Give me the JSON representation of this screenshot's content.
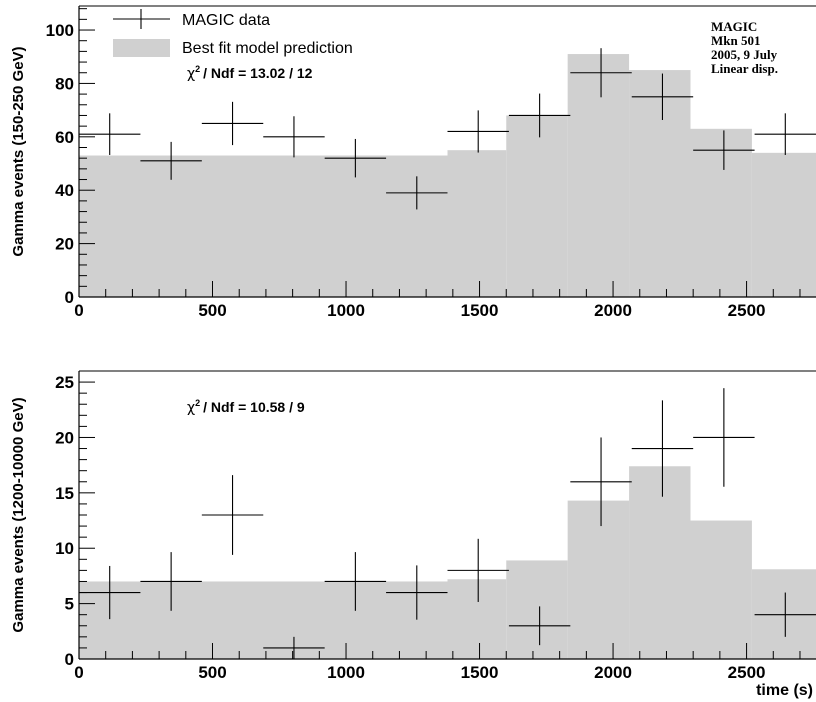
{
  "chart_data": [
    {
      "type": "bar",
      "panel": "top",
      "ylabel": "Gamma events (150-250 GeV)",
      "xlabel": "",
      "xlim": [
        0,
        2760
      ],
      "ylim": [
        0,
        109
      ],
      "x_ticks": [
        0,
        500,
        1000,
        1500,
        2000,
        2500
      ],
      "y_ticks": [
        0,
        20,
        40,
        60,
        80,
        100
      ],
      "bin_width": 230,
      "legend": {
        "data_label": "MAGIC data",
        "model_label": "Best fit model prediction"
      },
      "chi2_text": "/ Ndf = 13.02 / 12",
      "info_lines": [
        "MAGIC",
        "Mkn 501",
        "2005, 9 July",
        "Linear disp."
      ],
      "series": [
        {
          "name": "Best fit model prediction",
          "bins": [
            {
              "x0": 0,
              "x1": 1380,
              "y": 53
            },
            {
              "x0": 1380,
              "x1": 1600,
              "y": 55
            },
            {
              "x0": 1600,
              "x1": 1830,
              "y": 68
            },
            {
              "x0": 1830,
              "x1": 2060,
              "y": 91
            },
            {
              "x0": 2060,
              "x1": 2290,
              "y": 85
            },
            {
              "x0": 2290,
              "x1": 2520,
              "y": 63
            },
            {
              "x0": 2520,
              "x1": 2760,
              "y": 54
            }
          ]
        },
        {
          "name": "MAGIC data",
          "points": [
            {
              "x": 115,
              "y": 61,
              "err": 7.8
            },
            {
              "x": 345,
              "y": 51,
              "err": 7.1
            },
            {
              "x": 575,
              "y": 65,
              "err": 8.1
            },
            {
              "x": 805,
              "y": 60,
              "err": 7.7
            },
            {
              "x": 1035,
              "y": 52,
              "err": 7.2
            },
            {
              "x": 1265,
              "y": 39,
              "err": 6.2
            },
            {
              "x": 1495,
              "y": 62,
              "err": 7.9
            },
            {
              "x": 1725,
              "y": 68,
              "err": 8.2
            },
            {
              "x": 1955,
              "y": 84,
              "err": 9.2
            },
            {
              "x": 2185,
              "y": 75,
              "err": 8.7
            },
            {
              "x": 2415,
              "y": 55,
              "err": 7.4
            },
            {
              "x": 2645,
              "y": 61,
              "err": 7.8
            }
          ]
        }
      ]
    },
    {
      "type": "bar",
      "panel": "bottom",
      "ylabel": "Gamma events (1200-10000 GeV)",
      "xlabel": "time (s)",
      "xlim": [
        0,
        2760
      ],
      "ylim": [
        0,
        26
      ],
      "x_ticks": [
        0,
        500,
        1000,
        1500,
        2000,
        2500
      ],
      "y_ticks": [
        0,
        5,
        10,
        15,
        20,
        25
      ],
      "bin_width": 230,
      "chi2_text": "/ Ndf = 10.58 / 9",
      "series": [
        {
          "name": "Best fit model prediction",
          "bins": [
            {
              "x0": 0,
              "x1": 1380,
              "y": 7
            },
            {
              "x0": 1380,
              "x1": 1600,
              "y": 7.2
            },
            {
              "x0": 1600,
              "x1": 1830,
              "y": 8.9
            },
            {
              "x0": 1830,
              "x1": 2060,
              "y": 14.3
            },
            {
              "x0": 2060,
              "x1": 2290,
              "y": 17.4
            },
            {
              "x0": 2290,
              "x1": 2520,
              "y": 12.5
            },
            {
              "x0": 2520,
              "x1": 2760,
              "y": 8.1
            }
          ]
        },
        {
          "name": "MAGIC data",
          "points": [
            {
              "x": 115,
              "y": 6,
              "err": 2.4
            },
            {
              "x": 345,
              "y": 7,
              "err": 2.65
            },
            {
              "x": 575,
              "y": 13,
              "err": 3.6
            },
            {
              "x": 805,
              "y": 1,
              "err": 1.0
            },
            {
              "x": 1035,
              "y": 7,
              "err": 2.65
            },
            {
              "x": 1265,
              "y": 6,
              "err": 2.45
            },
            {
              "x": 1495,
              "y": 8,
              "err": 2.85
            },
            {
              "x": 1725,
              "y": 3,
              "err": 1.75
            },
            {
              "x": 1955,
              "y": 16,
              "err": 4.0
            },
            {
              "x": 2185,
              "y": 19,
              "err": 4.35
            },
            {
              "x": 2415,
              "y": 20,
              "err": 4.45
            },
            {
              "x": 2645,
              "y": 4,
              "err": 2.0
            }
          ]
        }
      ]
    }
  ]
}
